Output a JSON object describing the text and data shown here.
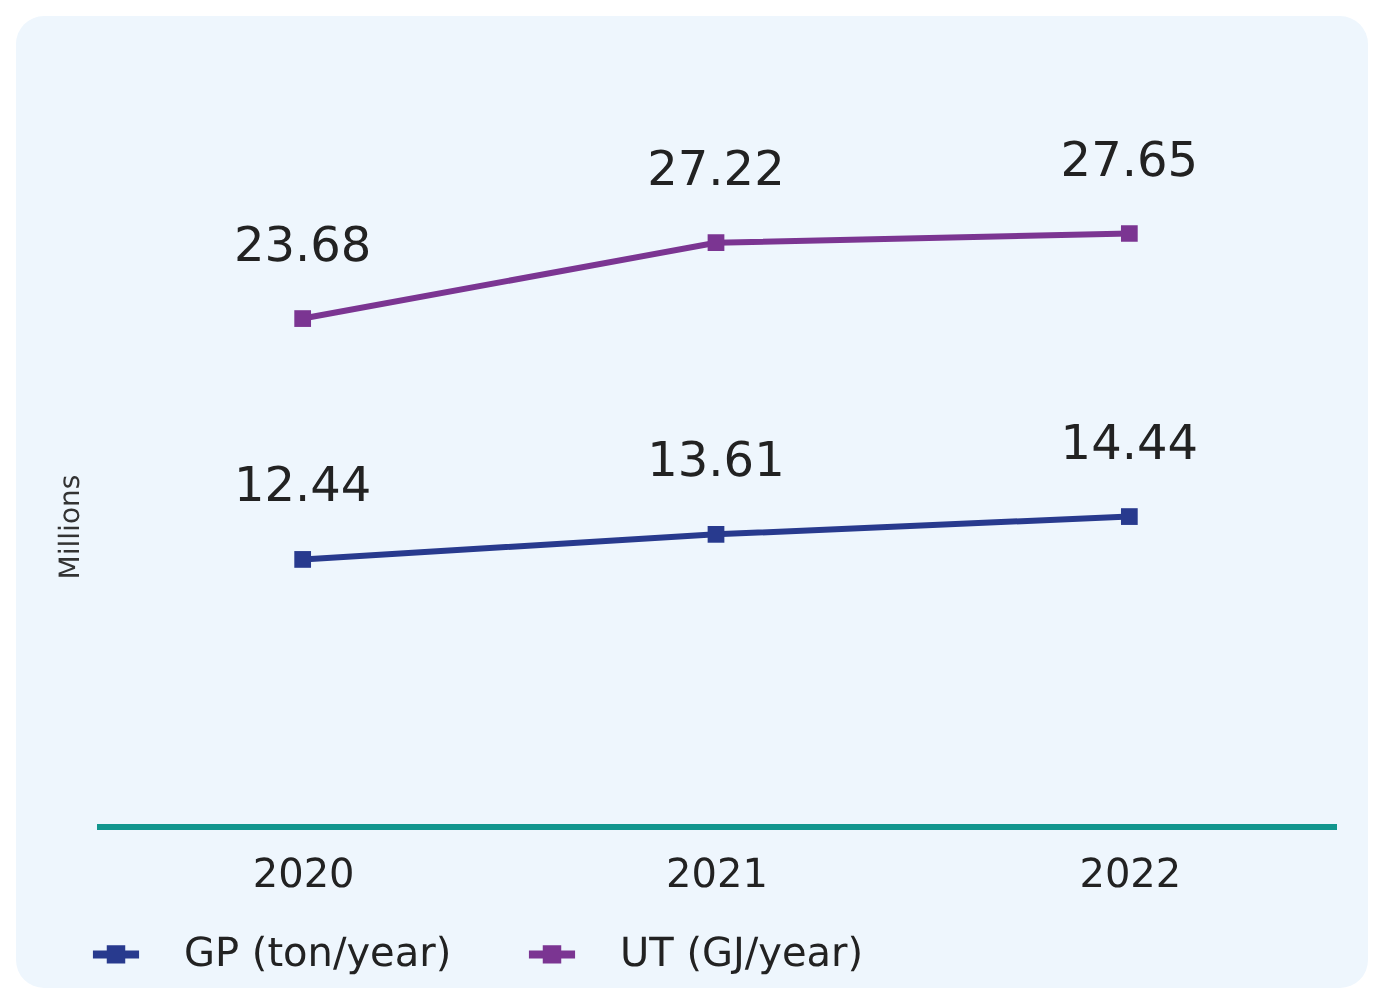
{
  "chart_data": {
    "type": "line",
    "ylabel": "Millions",
    "categories": [
      "2020",
      "2021",
      "2022"
    ],
    "series": [
      {
        "name": "GP (ton/year)",
        "color": "#283a8e",
        "values": [
          12.44,
          13.61,
          14.44
        ]
      },
      {
        "name": "UT (GJ/year)",
        "color": "#7b3592",
        "values": [
          23.68,
          27.22,
          27.65
        ]
      }
    ],
    "data_labels": true,
    "legend": "bottom",
    "marker": "square",
    "line_style": "solid",
    "grid": false
  }
}
